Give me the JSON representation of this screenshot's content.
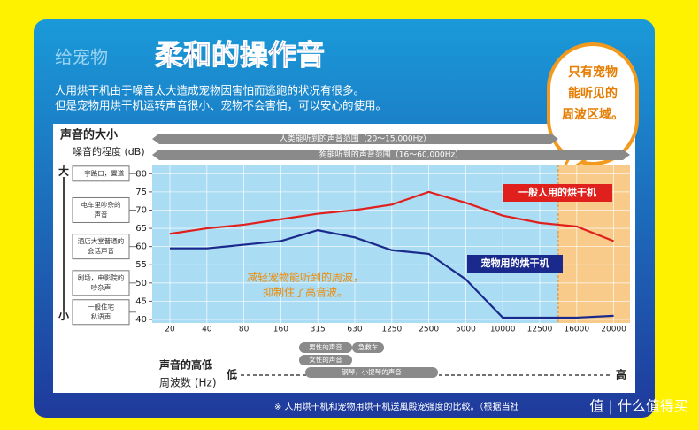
{
  "chart_data": {
    "type": "line",
    "pretitle": "给宠物",
    "title": "柔和的操作音",
    "subtitle": [
      "人用烘干机由于噪音太大造成宠物因害怕而逃跑的状况有很多。",
      "但是宠物用烘干机运转声音很小、宠物不会害怕，可以安心的使用。"
    ],
    "y_axis_label": "声音的大小",
    "y_axis_sublabel": "噪音的程度 (dB)",
    "y_high": "大",
    "y_low": "小",
    "x_axis_label": "声音的高低",
    "x_axis_sublabel": "周波数 (Hz)",
    "x_low": "低",
    "x_high": "高",
    "categories": [
      "20",
      "40",
      "80",
      "160",
      "315",
      "630",
      "1250",
      "2500",
      "5000",
      "10000",
      "12500",
      "16000",
      "20000"
    ],
    "series": [
      {
        "name": "一般人用的烘干机",
        "color": "#e0201c",
        "values": [
          63.5,
          65,
          66,
          67.5,
          69,
          70,
          71.5,
          75,
          72,
          68.5,
          66.5,
          65.5,
          61.5
        ]
      },
      {
        "name": "宠物用的烘干机",
        "color": "#1a2a8c",
        "values": [
          59.5,
          59.5,
          60.5,
          61.5,
          64.5,
          62.5,
          59,
          58,
          51,
          40.5,
          40.5,
          40.5,
          41
        ]
      }
    ],
    "ylim": [
      40,
      82.5
    ],
    "yticks": [
      40,
      45,
      50,
      55,
      60,
      65,
      70,
      75,
      80
    ],
    "grid": true,
    "references": [
      {
        "value": 80,
        "label": [
          "十字路口，置道"
        ]
      },
      {
        "value": 70,
        "label": [
          "电车里吵杂的",
          "声音"
        ]
      },
      {
        "value": 60,
        "label": [
          "酒店大堂普通的",
          "会话声音"
        ]
      },
      {
        "value": 50,
        "label": [
          "剧场，电影院的",
          "吵杂声"
        ]
      },
      {
        "value": 42,
        "label": [
          "一般住宅",
          "私语声"
        ]
      }
    ],
    "ranges": [
      "人类能听到的声音范围（20～15,000Hz）",
      "狗能听到的声音范围（16～60,000Hz）"
    ],
    "sources": [
      "男性的声音",
      "急救车",
      "女性的声音",
      "钢琴，小提琴的声音"
    ],
    "annotation": [
      "减轻宠物能听到的周波，",
      "抑制住了高音波。"
    ],
    "bubble": [
      "只有宠物",
      "能听见的",
      "周波区域。"
    ],
    "footnote": "※ 人用烘干机和宠物用烘干机送風殿宠强度的比較。（根据当社",
    "watermark": "值 | 什么值得买"
  }
}
